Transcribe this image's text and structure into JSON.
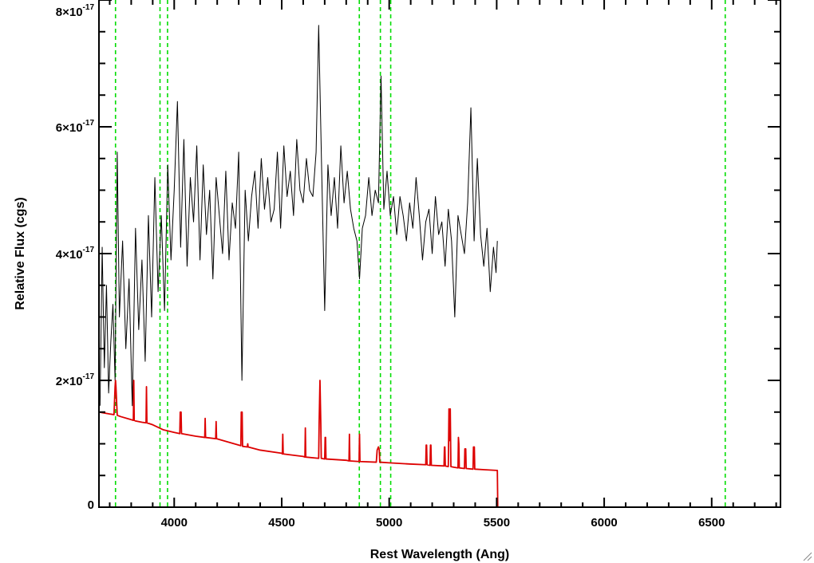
{
  "chart_data": {
    "type": "line",
    "title": "",
    "xlabel": "Rest Wavelength (Ang)",
    "ylabel": "Relative Flux (cgs)",
    "xlim": [
      3650,
      6820
    ],
    "ylim": [
      0,
      8e-17
    ],
    "x_ticks": [
      4000,
      4500,
      5000,
      5500,
      6000,
      6500
    ],
    "x_tick_labels": [
      "4000",
      "4500",
      "5000",
      "5500",
      "6000",
      "6500"
    ],
    "y_ticks": [
      0,
      2e-17,
      4e-17,
      6e-17,
      8e-17
    ],
    "y_tick_labels": [
      {
        "mantissa": "0",
        "exponent": ""
      },
      {
        "mantissa": "2×10",
        "exponent": "-17"
      },
      {
        "mantissa": "4×10",
        "exponent": "-17"
      },
      {
        "mantissa": "6×10",
        "exponent": "-17"
      },
      {
        "mantissa": "8×10",
        "exponent": "-17"
      }
    ],
    "grid": false,
    "vertical_lines": {
      "color": "#00dd00",
      "style": "dashed",
      "x": [
        3727,
        3934,
        3969,
        4861,
        4959,
        5007,
        6563
      ]
    },
    "series": [
      {
        "color": "#000000",
        "description": "observed spectrum (noisy), ends at ~5505 Ang",
        "x": [
          3655,
          3665,
          3675,
          3685,
          3695,
          3705,
          3715,
          3725,
          3735,
          3745,
          3760,
          3775,
          3790,
          3805,
          3820,
          3835,
          3850,
          3865,
          3880,
          3895,
          3910,
          3925,
          3940,
          3955,
          3970,
          3985,
          4000,
          4015,
          4030,
          4045,
          4060,
          4075,
          4090,
          4105,
          4120,
          4135,
          4150,
          4165,
          4180,
          4195,
          4210,
          4225,
          4240,
          4255,
          4270,
          4285,
          4300,
          4315,
          4330,
          4345,
          4360,
          4375,
          4390,
          4405,
          4420,
          4435,
          4450,
          4465,
          4480,
          4495,
          4510,
          4525,
          4540,
          4555,
          4570,
          4585,
          4600,
          4615,
          4630,
          4645,
          4660,
          4672,
          4686,
          4700,
          4715,
          4730,
          4745,
          4760,
          4775,
          4790,
          4805,
          4820,
          4835,
          4850,
          4862,
          4875,
          4890,
          4905,
          4920,
          4935,
          4950,
          4962,
          4975,
          4990,
          5005,
          5020,
          5035,
          5050,
          5065,
          5080,
          5095,
          5110,
          5125,
          5140,
          5155,
          5170,
          5185,
          5200,
          5215,
          5230,
          5245,
          5260,
          5275,
          5290,
          5305,
          5320,
          5335,
          5350,
          5365,
          5380,
          5395,
          5410,
          5425,
          5440,
          5455,
          5470,
          5485,
          5497,
          5503
        ],
        "y_e17": [
          1.6,
          4.1,
          2.2,
          3.5,
          1.8,
          2.6,
          3.2,
          2.0,
          5.6,
          3.0,
          4.2,
          2.5,
          3.6,
          1.6,
          4.4,
          2.8,
          3.9,
          2.3,
          4.6,
          3.0,
          5.2,
          3.4,
          4.6,
          3.1,
          5.4,
          3.9,
          5.0,
          6.4,
          4.1,
          5.8,
          3.8,
          5.2,
          4.5,
          5.7,
          3.9,
          5.4,
          4.3,
          5.0,
          3.6,
          5.2,
          4.6,
          4.0,
          5.3,
          3.9,
          4.8,
          4.4,
          5.6,
          2.0,
          5.0,
          4.2,
          4.9,
          5.3,
          4.4,
          5.5,
          4.7,
          5.2,
          4.5,
          4.7,
          5.6,
          4.4,
          5.7,
          4.9,
          5.3,
          4.6,
          5.8,
          5.0,
          4.8,
          5.5,
          5.0,
          4.9,
          5.6,
          7.6,
          5.3,
          3.1,
          5.4,
          4.6,
          5.2,
          4.4,
          5.7,
          4.8,
          5.3,
          4.7,
          4.4,
          4.2,
          3.6,
          4.4,
          4.6,
          5.2,
          4.6,
          5.0,
          4.8,
          6.8,
          4.7,
          5.3,
          4.6,
          4.9,
          4.3,
          4.9,
          4.6,
          4.2,
          4.8,
          4.4,
          5.2,
          4.6,
          3.9,
          4.5,
          4.7,
          4.0,
          4.9,
          4.3,
          4.5,
          3.8,
          4.7,
          4.2,
          3.0,
          4.6,
          4.3,
          4.0,
          4.8,
          6.3,
          4.2,
          5.5,
          4.3,
          3.8,
          4.4,
          3.4,
          4.1,
          3.7,
          4.2
        ]
      },
      {
        "color": "#dd0000",
        "description": "model continuum with emission lines, drops to zero at ~5505 Ang",
        "x": [
          3650,
          3700,
          3720,
          3725,
          3727,
          3729,
          3735,
          3750,
          3800,
          3810,
          3812,
          3814,
          3820,
          3850,
          3869,
          3871,
          3873,
          3900,
          3950,
          4000,
          4026,
          4028,
          4030,
          4032,
          4034,
          4100,
          4142,
          4144,
          4146,
          4193,
          4195,
          4197,
          4300,
          4310,
          4312,
          4314,
          4316,
          4318,
          4340,
          4342,
          4344,
          4400,
          4500,
          4503,
          4505,
          4507,
          4600,
          4608,
          4610,
          4612,
          4672,
          4674,
          4678,
          4682,
          4684,
          4700,
          4702,
          4704,
          4706,
          4800,
          4813,
          4815,
          4817,
          4860,
          4862,
          4864,
          4940,
          4944,
          4950,
          4954,
          4956,
          5000,
          5100,
          5170,
          5172,
          5174,
          5176,
          5190,
          5192,
          5194,
          5196,
          5255,
          5257,
          5259,
          5261,
          5275,
          5278,
          5281,
          5284,
          5287,
          5300,
          5320,
          5322,
          5324,
          5326,
          5350,
          5352,
          5354,
          5356,
          5358,
          5390,
          5392,
          5394,
          5396,
          5398,
          5400,
          5450,
          5500,
          5503,
          5505,
          5506,
          6820
        ],
        "y_e17": [
          1.5,
          1.47,
          1.46,
          1.9,
          2.0,
          1.9,
          1.45,
          1.43,
          1.38,
          1.37,
          2.0,
          1.37,
          1.36,
          1.34,
          1.33,
          1.9,
          1.33,
          1.3,
          1.22,
          1.18,
          1.16,
          1.5,
          1.5,
          1.5,
          1.16,
          1.12,
          1.1,
          1.4,
          1.1,
          1.08,
          1.35,
          1.08,
          0.98,
          0.97,
          1.5,
          1.5,
          1.5,
          0.96,
          0.95,
          1.0,
          0.95,
          0.9,
          0.85,
          0.84,
          1.15,
          0.84,
          0.8,
          0.79,
          1.25,
          0.79,
          0.77,
          1.3,
          2.0,
          1.3,
          0.77,
          0.76,
          1.1,
          1.1,
          0.76,
          0.74,
          0.73,
          1.15,
          0.73,
          0.72,
          1.15,
          0.72,
          0.71,
          0.9,
          0.95,
          0.9,
          0.71,
          0.7,
          0.68,
          0.67,
          0.98,
          0.98,
          0.67,
          0.66,
          0.98,
          0.98,
          0.66,
          0.65,
          0.95,
          0.95,
          0.65,
          0.64,
          1.55,
          1.05,
          1.55,
          0.64,
          0.63,
          0.62,
          1.1,
          1.0,
          0.62,
          0.61,
          0.92,
          0.92,
          0.92,
          0.61,
          0.6,
          0.95,
          0.95,
          0.95,
          0.6,
          0.6,
          0.59,
          0.58,
          0.58,
          0.0,
          0.0,
          0.0
        ]
      }
    ]
  }
}
